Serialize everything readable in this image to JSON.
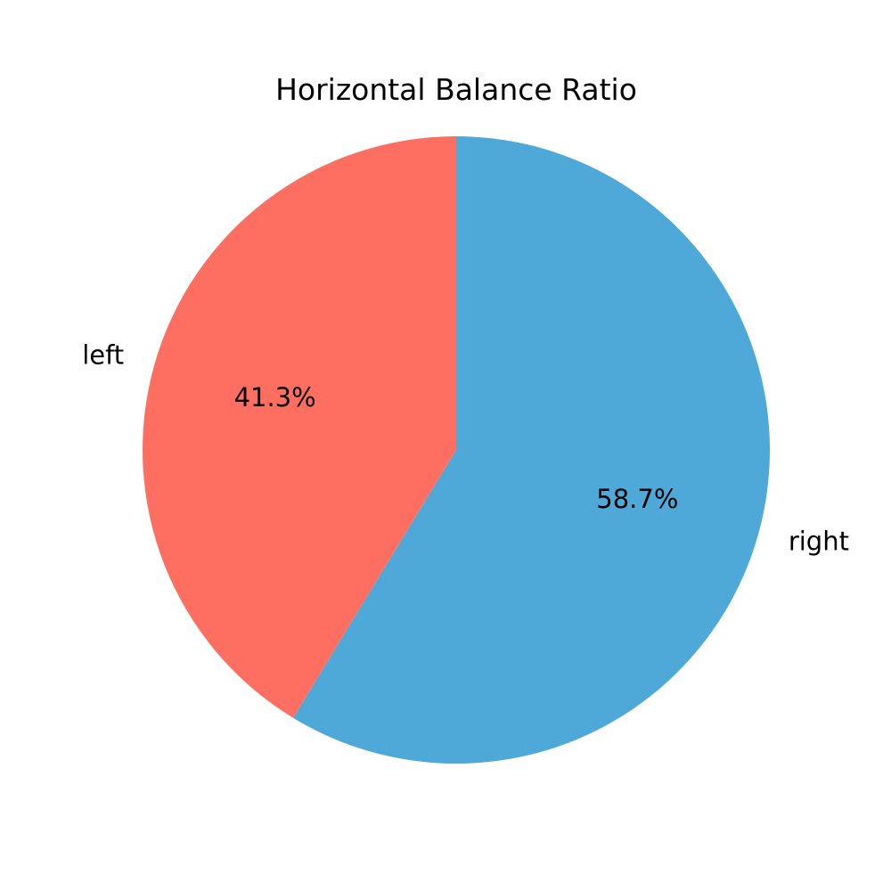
{
  "chart_data": {
    "type": "pie",
    "title": "Horizontal Balance Ratio",
    "start_angle_deg": 90,
    "direction": "clockwise",
    "slices": [
      {
        "label": "right",
        "value": 58.7,
        "pct_label": "58.7%",
        "color": "#4ea8d8"
      },
      {
        "label": "left",
        "value": 41.3,
        "pct_label": "41.3%",
        "color": "#ff6f61"
      }
    ]
  }
}
